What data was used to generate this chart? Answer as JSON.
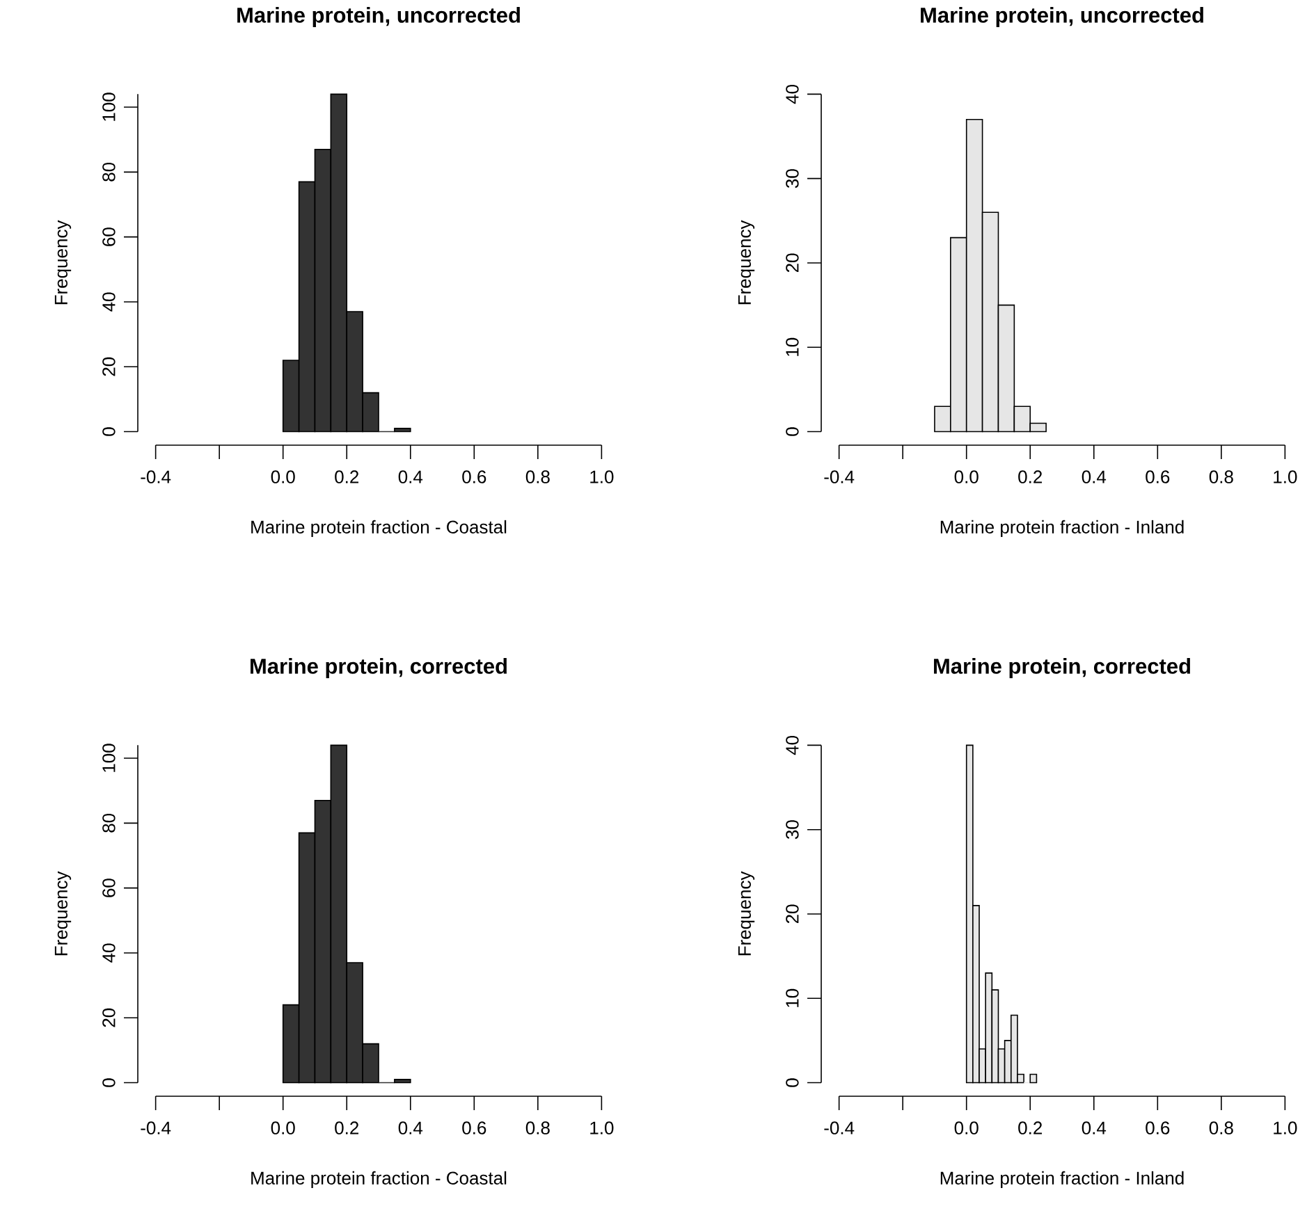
{
  "chart_data": [
    {
      "type": "histogram",
      "title": "Marine protein, uncorrected",
      "xlabel": "Marine protein fraction - Coastal",
      "ylabel": "Frequency",
      "color": "#333333",
      "bins": [
        0,
        0.05,
        0.1,
        0.15,
        0.2,
        0.25,
        0.3,
        0.35,
        0.4
      ],
      "values": [
        22,
        77,
        87,
        104,
        37,
        12,
        0,
        1
      ],
      "xlim": [
        -0.4,
        1.0
      ],
      "ylim": [
        0,
        104
      ],
      "xticks": [
        -0.4,
        {
          "value": -0.2,
          "label": null
        },
        {
          "value": 0,
          "label": "0.0"
        },
        0.2,
        0.4,
        0.6,
        0.8,
        {
          "value": 1,
          "label": "1.0"
        }
      ],
      "yticks": [
        0,
        20,
        40,
        60,
        80,
        100
      ]
    },
    {
      "type": "histogram",
      "title": "Marine protein, uncorrected",
      "xlabel": "Marine protein fraction - Inland",
      "ylabel": "Frequency",
      "color": "#e6e6e6",
      "bins": [
        -0.1,
        -0.05,
        0,
        0.05,
        0.1,
        0.15,
        0.2,
        0.25
      ],
      "values": [
        3,
        23,
        37,
        26,
        15,
        3,
        1
      ],
      "xlim": [
        -0.4,
        1.0
      ],
      "ylim": [
        0,
        40
      ],
      "xticks": [
        -0.4,
        {
          "value": -0.2,
          "label": null
        },
        {
          "value": 0,
          "label": "0.0"
        },
        0.2,
        0.4,
        0.6,
        0.8,
        {
          "value": 1,
          "label": "1.0"
        }
      ],
      "yticks": [
        0,
        10,
        20,
        30,
        40
      ]
    },
    {
      "type": "histogram",
      "title": "Marine protein, corrected",
      "xlabel": "Marine protein fraction - Coastal",
      "ylabel": "Frequency",
      "color": "#333333",
      "bins": [
        0,
        0.05,
        0.1,
        0.15,
        0.2,
        0.25,
        0.3,
        0.35,
        0.4
      ],
      "values": [
        24,
        77,
        87,
        104,
        37,
        12,
        0,
        1
      ],
      "xlim": [
        -0.4,
        1.0
      ],
      "ylim": [
        0,
        104
      ],
      "xticks": [
        -0.4,
        {
          "value": -0.2,
          "label": null
        },
        {
          "value": 0,
          "label": "0.0"
        },
        0.2,
        0.4,
        0.6,
        0.8,
        {
          "value": 1,
          "label": "1.0"
        }
      ],
      "yticks": [
        0,
        20,
        40,
        60,
        80,
        100
      ]
    },
    {
      "type": "histogram",
      "title": "Marine protein, corrected",
      "xlabel": "Marine protein fraction - Inland",
      "ylabel": "Frequency",
      "color": "#e6e6e6",
      "bins": [
        0,
        0.02,
        0.04,
        0.06,
        0.08,
        0.1,
        0.12,
        0.14,
        0.16,
        0.18,
        0.2,
        0.22
      ],
      "values": [
        40,
        21,
        4,
        13,
        11,
        4,
        5,
        8,
        1,
        0,
        1
      ],
      "xlim": [
        -0.4,
        1.0
      ],
      "ylim": [
        0,
        40
      ],
      "xticks": [
        -0.4,
        {
          "value": -0.2,
          "label": null
        },
        {
          "value": 0,
          "label": "0.0"
        },
        0.2,
        0.4,
        0.6,
        0.8,
        {
          "value": 1,
          "label": "1.0"
        }
      ],
      "yticks": [
        0,
        10,
        20,
        30,
        40
      ]
    }
  ]
}
